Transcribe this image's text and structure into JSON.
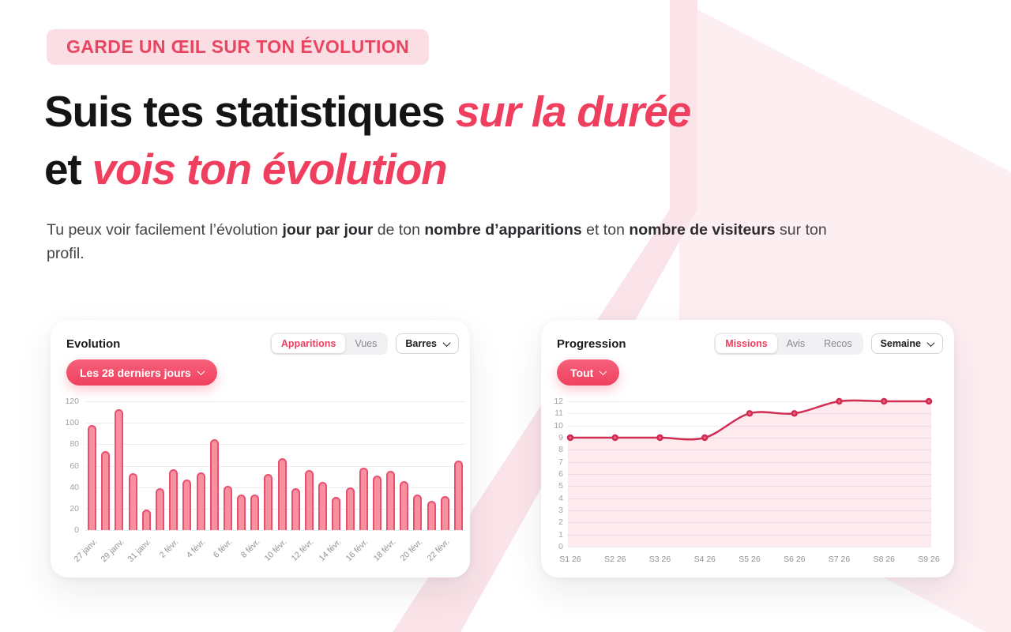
{
  "badge": {
    "label": "GARDE UN ŒIL SUR TON ÉVOLUTION"
  },
  "heading": {
    "line1_black": "Suis tes statistiques ",
    "line1_pink": "sur la durée",
    "line2_black": "et ",
    "line2_pink": "vois ton évolution"
  },
  "paragraph": {
    "segments": [
      {
        "text": "Tu peux voir facilement l’évolution ",
        "bold": false
      },
      {
        "text": "jour par jour",
        "bold": true
      },
      {
        "text": " de ton ",
        "bold": false
      },
      {
        "text": "nombre d’apparitions",
        "bold": true
      },
      {
        "text": " et ton ",
        "bold": false
      },
      {
        "text": "nombre de visiteurs",
        "bold": true
      },
      {
        "text": " sur ton profil.",
        "bold": false
      }
    ]
  },
  "evolution_card": {
    "title": "Evolution",
    "tabs": [
      {
        "label": "Apparitions",
        "active": true
      },
      {
        "label": "Vues",
        "active": false
      }
    ],
    "select": {
      "value": "Barres"
    },
    "filter_pill": {
      "label": "Les 28 derniers jours"
    }
  },
  "progression_card": {
    "title": "Progression",
    "tabs": [
      {
        "label": "Missions",
        "active": true
      },
      {
        "label": "Avis",
        "active": false
      },
      {
        "label": "Recos",
        "active": false
      }
    ],
    "select": {
      "value": "Semaine"
    },
    "filter_pill": {
      "label": "Tout"
    }
  },
  "colors": {
    "accent": "#f0405f",
    "pill": "#f4516c",
    "bar_fill": "#f7909f",
    "bar_border": "#e9506e",
    "line": "#d22d53",
    "area_fill": "rgba(240,90,120,0.13)",
    "badge_bg": "#fbdde4",
    "badge_text": "#e84560",
    "bg_pink_light": "#fdeef1",
    "bg_pink_stripe": "#fae4e9",
    "grid": "#ededf1"
  },
  "chart_data": [
    {
      "type": "bar",
      "title": "Evolution",
      "values": [
        98,
        74,
        113,
        53,
        19,
        39,
        57,
        47,
        54,
        85,
        41,
        33,
        33,
        52,
        67,
        39,
        56,
        45,
        31,
        40,
        58,
        51,
        55,
        46,
        33,
        27,
        32,
        65
      ],
      "x_tick_labels": [
        "27 janv.",
        "29 janv.",
        "31 janv.",
        "2 févr.",
        "4 févr.",
        "6 févr.",
        "8 févr.",
        "10 févr.",
        "12 févr.",
        "14 févr.",
        "16 févr.",
        "18 févr.",
        "20 févr.",
        "22 févr."
      ],
      "x_tick_positions": [
        0,
        2,
        4,
        6,
        8,
        10,
        12,
        14,
        16,
        18,
        20,
        22,
        24,
        26
      ],
      "xlabel": "",
      "ylabel": "",
      "ylim": [
        0,
        120
      ],
      "ytick_step": 20,
      "grid": true,
      "legend": "none"
    },
    {
      "type": "line",
      "title": "Progression",
      "categories": [
        "S1 26",
        "S2 26",
        "S3 26",
        "S4 26",
        "S5 26",
        "S6 26",
        "S7 26",
        "S8 26",
        "S9 26"
      ],
      "values": [
        9,
        9,
        9,
        9,
        11,
        11,
        12,
        12,
        12
      ],
      "xlabel": "",
      "ylabel": "",
      "ylim": [
        0,
        12
      ],
      "ytick_step": 1,
      "grid": true,
      "area": true,
      "markers": true,
      "legend": "none"
    }
  ]
}
